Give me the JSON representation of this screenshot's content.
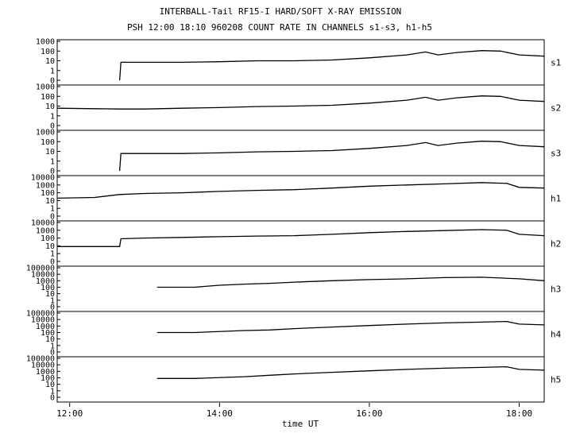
{
  "chart_data": {
    "type": "line",
    "title": "INTERBALL-Tail RF15-I HARD/SOFT X-RAY EMISSION",
    "subtitle": "PSH 12:00 18:10 960208  COUNT RATE IN CHANNELS s1-s3, h1-h5",
    "xlabel": "time UT",
    "xlim": [
      "11:50",
      "18:20"
    ],
    "x_ticks": [
      "12:00",
      "14:00",
      "16:00",
      "18:00"
    ],
    "grid": false,
    "yscale": "log",
    "panels": [
      {
        "name": "s1",
        "y_ticks": [
          "1000",
          "100",
          "10",
          "1",
          "0"
        ],
        "series": {
          "x": [
            "12:40",
            "12:41",
            "13:00",
            "13:30",
            "14:00",
            "14:30",
            "15:00",
            "15:30",
            "16:00",
            "16:30",
            "16:45",
            "16:55",
            "17:10",
            "17:30",
            "17:45",
            "18:00",
            "18:20"
          ],
          "y": [
            0,
            7,
            7,
            7,
            8,
            10,
            10,
            12,
            20,
            40,
            80,
            40,
            70,
            110,
            100,
            40,
            30
          ]
        }
      },
      {
        "name": "s2",
        "y_ticks": [
          "1000",
          "100",
          "10",
          "1",
          "0"
        ],
        "series": {
          "x": [
            "11:50",
            "12:40",
            "13:00",
            "13:30",
            "14:00",
            "14:30",
            "15:00",
            "15:30",
            "16:00",
            "16:30",
            "16:45",
            "16:55",
            "17:10",
            "17:30",
            "17:45",
            "18:00",
            "18:20"
          ],
          "y": [
            6,
            5,
            5,
            6,
            7,
            9,
            10,
            12,
            20,
            40,
            80,
            40,
            70,
            110,
            100,
            40,
            30
          ]
        }
      },
      {
        "name": "s3",
        "y_ticks": [
          "1000",
          "100",
          "10",
          "1",
          "0"
        ],
        "series": {
          "x": [
            "12:40",
            "12:41",
            "13:00",
            "13:30",
            "14:00",
            "14:30",
            "15:00",
            "15:30",
            "16:00",
            "16:30",
            "16:45",
            "16:55",
            "17:10",
            "17:30",
            "17:45",
            "18:00",
            "18:20"
          ],
          "y": [
            0,
            6,
            6,
            6,
            7,
            9,
            10,
            12,
            20,
            40,
            80,
            40,
            70,
            110,
            100,
            40,
            30
          ]
        }
      },
      {
        "name": "h1",
        "y_ticks": [
          "10000",
          "1000",
          "100",
          "10",
          "1",
          "0"
        ],
        "series": {
          "x": [
            "11:50",
            "12:20",
            "12:40",
            "13:00",
            "13:30",
            "14:00",
            "14:30",
            "15:00",
            "15:30",
            "16:00",
            "16:30",
            "17:00",
            "17:30",
            "17:50",
            "18:00",
            "18:20"
          ],
          "y": [
            20,
            25,
            60,
            80,
            100,
            150,
            200,
            250,
            400,
            700,
            1000,
            1400,
            2000,
            1600,
            500,
            400
          ]
        }
      },
      {
        "name": "h2",
        "y_ticks": [
          "10000",
          "1000",
          "100",
          "10",
          "1",
          "0"
        ],
        "series": {
          "x": [
            "11:50",
            "12:40",
            "12:41",
            "13:00",
            "13:30",
            "14:00",
            "14:30",
            "15:00",
            "15:30",
            "16:00",
            "16:30",
            "17:00",
            "17:30",
            "17:50",
            "18:00",
            "18:20"
          ],
          "y": [
            8,
            8,
            80,
            100,
            120,
            150,
            180,
            200,
            300,
            500,
            700,
            900,
            1200,
            1000,
            300,
            200
          ]
        }
      },
      {
        "name": "h3",
        "y_ticks": [
          "100000",
          "10000",
          "1000",
          "100",
          "10",
          "1",
          "0"
        ],
        "series": {
          "x": [
            "13:10",
            "13:15",
            "13:40",
            "14:00",
            "14:20",
            "14:40",
            "15:00",
            "15:30",
            "16:00",
            "16:30",
            "17:00",
            "17:30",
            "18:00",
            "18:20"
          ],
          "y": [
            100,
            100,
            100,
            200,
            300,
            400,
            600,
            1000,
            1500,
            2000,
            3000,
            3500,
            2000,
            1000
          ]
        }
      },
      {
        "name": "h4",
        "y_ticks": [
          "100000",
          "10000",
          "1000",
          "100",
          "10",
          "1",
          "0"
        ],
        "series": {
          "x": [
            "13:10",
            "13:15",
            "13:40",
            "14:20",
            "14:40",
            "15:00",
            "15:30",
            "16:00",
            "16:30",
            "17:00",
            "17:30",
            "17:50",
            "18:00",
            "18:20"
          ],
          "y": [
            100,
            100,
            100,
            200,
            250,
            400,
            700,
            1200,
            2000,
            3000,
            4000,
            5000,
            2000,
            1500
          ]
        }
      },
      {
        "name": "h5",
        "y_ticks": [
          "100000",
          "10000",
          "1000",
          "100",
          "10",
          "1",
          "0"
        ],
        "series": {
          "x": [
            "13:10",
            "13:15",
            "13:40",
            "14:20",
            "14:40",
            "15:00",
            "15:30",
            "16:00",
            "16:30",
            "17:00",
            "17:30",
            "17:50",
            "18:00",
            "18:20"
          ],
          "y": [
            80,
            80,
            80,
            150,
            250,
            400,
            700,
            1200,
            2000,
            3000,
            4000,
            5000,
            2000,
            1500
          ]
        }
      }
    ]
  }
}
